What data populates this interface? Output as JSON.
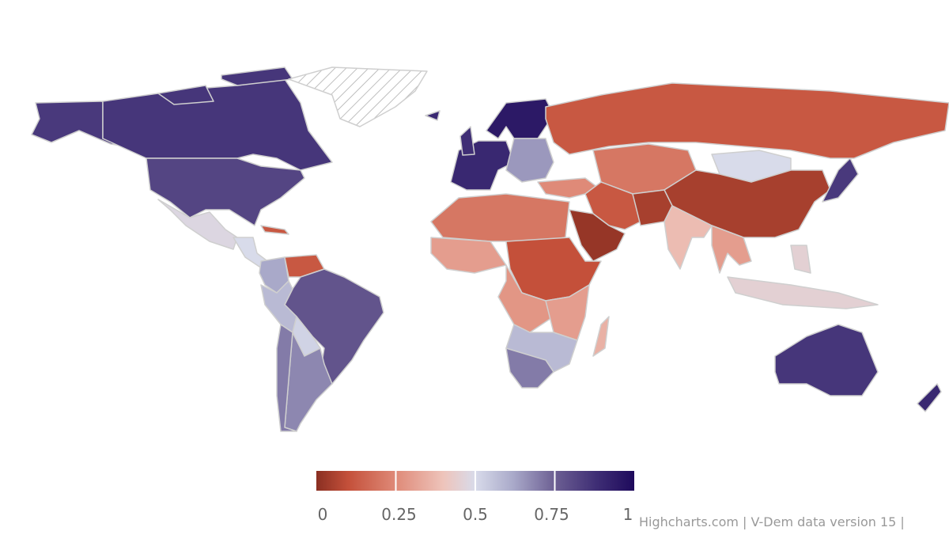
{
  "chart_data": {
    "type": "choropleth",
    "title": "",
    "color_axis": {
      "min": 0,
      "max": 1,
      "tick_labels": [
        "0",
        "0.25",
        "0.5",
        "0.75",
        "1"
      ],
      "stops": [
        {
          "value": 0,
          "color": "#8a2f22"
        },
        {
          "value": 0.1,
          "color": "#c4503a"
        },
        {
          "value": 0.25,
          "color": "#df8a78"
        },
        {
          "value": 0.4,
          "color": "#eec4bb"
        },
        {
          "value": 0.5,
          "color": "#d8dbea"
        },
        {
          "value": 0.62,
          "color": "#a9a9c9"
        },
        {
          "value": 0.75,
          "color": "#6c5f93"
        },
        {
          "value": 0.88,
          "color": "#3f2e75"
        },
        {
          "value": 1,
          "color": "#1e0a5c"
        }
      ],
      "legend_placement": "bottom-center"
    },
    "no_data_style": "hatched",
    "regions": {
      "Alaska": 0.85,
      "Canada": 0.86,
      "Canadian Arctic": 0.86,
      "United States": 0.82,
      "Mexico": 0.48,
      "Central America": 0.5,
      "Cuba": 0.12,
      "Greenland": null,
      "Iceland": 0.9,
      "Colombia": 0.62,
      "Venezuela": 0.12,
      "Brazil": 0.78,
      "Peru": 0.58,
      "Bolivia": 0.52,
      "Argentina": 0.68,
      "Chile": 0.7,
      "Western Europe": 0.9,
      "United Kingdom": 0.88,
      "Scandinavia": 0.95,
      "Eastern Europe": 0.65,
      "Russia": 0.12,
      "Central Asia": 0.2,
      "Mongolia": 0.5,
      "China": 0.05,
      "Japan": 0.85,
      "Turkey": 0.25,
      "Iran": 0.12,
      "Afghanistan": 0.05,
      "Saudi Arabia": 0.02,
      "India": 0.38,
      "Southeast Asia": 0.3,
      "Indonesia": 0.45,
      "Philippines": 0.45,
      "North Africa": 0.2,
      "West Africa": 0.3,
      "Sudan": 0.1,
      "Central Africa": 0.28,
      "East Africa": 0.3,
      "Southern Africa": 0.58,
      "South Africa": 0.7,
      "Madagascar": 0.35,
      "Australia": 0.86,
      "New Zealand": 0.9
    }
  },
  "credits": "Highcharts.com | V-Dem data version 15 |"
}
